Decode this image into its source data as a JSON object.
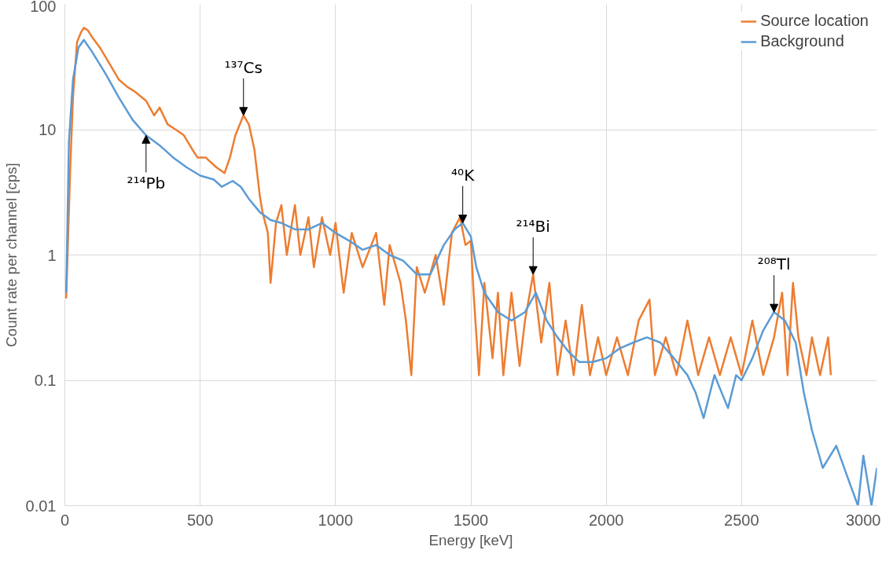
{
  "chart_data": {
    "type": "line",
    "xlabel": "Energy [keV]",
    "ylabel": "Count rate per channel [cps]",
    "xlim": [
      0,
      3000
    ],
    "xticks": [
      0,
      500,
      1000,
      1500,
      2000,
      2500,
      3000
    ],
    "ylim": [
      0.01,
      100
    ],
    "yticks": [
      0.01,
      0.1,
      1,
      10,
      100
    ],
    "log": "y",
    "grid": true,
    "legend": "top right",
    "series": [
      {
        "name": "Source location",
        "color": "#ed7d31",
        "x": [
          5,
          10,
          20,
          30,
          45,
          60,
          70,
          85,
          100,
          130,
          160,
          200,
          230,
          260,
          300,
          330,
          350,
          380,
          410,
          440,
          470,
          490,
          520,
          560,
          590,
          610,
          630,
          660,
          680,
          700,
          720,
          730,
          750,
          760,
          780,
          800,
          820,
          850,
          870,
          900,
          920,
          950,
          980,
          1000,
          1030,
          1060,
          1100,
          1150,
          1180,
          1200,
          1240,
          1260,
          1280,
          1300,
          1330,
          1370,
          1400,
          1430,
          1460,
          1480,
          1500,
          1510,
          1530,
          1550,
          1580,
          1600,
          1620,
          1650,
          1680,
          1700,
          1730,
          1760,
          1790,
          1820,
          1850,
          1880,
          1910,
          1940,
          1970,
          2000,
          2040,
          2080,
          2120,
          2160,
          2180,
          2220,
          2260,
          2300,
          2340,
          2380,
          2420,
          2460,
          2500,
          2540,
          2580,
          2620,
          2650,
          2670,
          2690,
          2710,
          2740,
          2760,
          2790,
          2820,
          2830
        ],
        "values": [
          0.45,
          1.0,
          5,
          18,
          50,
          60,
          65,
          62,
          55,
          45,
          35,
          25,
          22,
          20,
          17,
          13,
          15,
          11,
          10,
          9,
          7,
          6,
          6,
          5,
          4.5,
          6,
          9,
          13,
          11,
          7,
          3,
          2.2,
          1.5,
          0.6,
          1.8,
          2.5,
          1.0,
          2.5,
          1.0,
          2.0,
          0.8,
          2.0,
          1.0,
          1.8,
          0.5,
          1.5,
          0.8,
          1.5,
          0.4,
          1.2,
          0.6,
          0.3,
          0.11,
          0.8,
          0.5,
          1.0,
          0.4,
          1.5,
          2.0,
          1.2,
          1.3,
          0.5,
          0.11,
          0.6,
          0.15,
          0.5,
          0.11,
          0.5,
          0.13,
          0.3,
          0.7,
          0.2,
          0.6,
          0.11,
          0.3,
          0.11,
          0.4,
          0.11,
          0.22,
          0.11,
          0.22,
          0.11,
          0.3,
          0.44,
          0.11,
          0.22,
          0.11,
          0.3,
          0.11,
          0.22,
          0.11,
          0.22,
          0.11,
          0.3,
          0.11,
          0.22,
          0.5,
          0.11,
          0.6,
          0.22,
          0.11,
          0.22,
          0.11,
          0.22,
          0.11
        ]
      },
      {
        "name": "Background",
        "color": "#5b9bd5",
        "x": [
          5,
          15,
          30,
          50,
          70,
          100,
          150,
          200,
          250,
          300,
          350,
          400,
          450,
          500,
          550,
          580,
          620,
          650,
          680,
          720,
          760,
          800,
          850,
          900,
          950,
          1000,
          1050,
          1100,
          1150,
          1200,
          1250,
          1300,
          1350,
          1400,
          1440,
          1470,
          1500,
          1520,
          1550,
          1600,
          1650,
          1700,
          1740,
          1780,
          1820,
          1860,
          1900,
          1950,
          2000,
          2050,
          2100,
          2150,
          2200,
          2250,
          2300,
          2330,
          2360,
          2400,
          2450,
          2480,
          2500,
          2540,
          2580,
          2620,
          2660,
          2700,
          2730,
          2760,
          2800,
          2850,
          2900,
          2930,
          2950,
          2980,
          3000
        ],
        "values": [
          0.5,
          8,
          25,
          45,
          52,
          42,
          28,
          18,
          12,
          9,
          7.5,
          6,
          5,
          4.3,
          4.0,
          3.5,
          3.9,
          3.5,
          2.8,
          2.2,
          1.9,
          1.8,
          1.6,
          1.6,
          1.8,
          1.5,
          1.3,
          1.1,
          1.2,
          1.0,
          0.9,
          0.7,
          0.7,
          1.2,
          1.6,
          1.8,
          1.4,
          0.8,
          0.5,
          0.35,
          0.3,
          0.35,
          0.5,
          0.3,
          0.22,
          0.17,
          0.14,
          0.14,
          0.15,
          0.18,
          0.2,
          0.22,
          0.2,
          0.15,
          0.11,
          0.08,
          0.05,
          0.11,
          0.06,
          0.11,
          0.1,
          0.15,
          0.25,
          0.35,
          0.3,
          0.2,
          0.08,
          0.04,
          0.02,
          0.03,
          0.015,
          0.01,
          0.025,
          0.01,
          0.02
        ]
      }
    ],
    "annotations": [
      {
        "text": "¹³⁷Cs",
        "x": 660,
        "y": 13
      },
      {
        "text": "²¹⁴Pb",
        "x": 300,
        "y": 9
      },
      {
        "text": "²¹⁴Bi",
        "x": 1730,
        "y": 0.7
      },
      {
        "text": "⁴⁰K",
        "x": 1470,
        "y": 1.8
      },
      {
        "text": "²⁰⁸Tl",
        "x": 2620,
        "y": 0.35
      }
    ]
  }
}
